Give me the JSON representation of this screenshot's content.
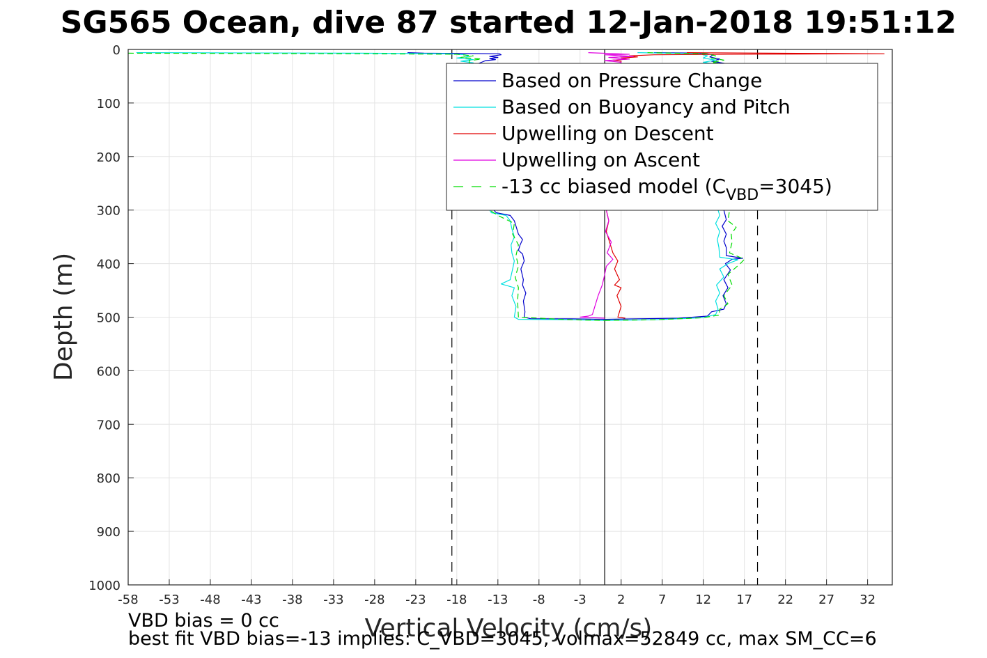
{
  "chart_data": {
    "type": "line",
    "title": "SG565 Ocean, dive 87 started 12-Jan-2018 19:51:12",
    "xlabel": "Vertical Velocity (cm/s)",
    "ylabel": "Depth (m)",
    "xlim": [
      -58,
      35
    ],
    "ylim": [
      0,
      1000
    ],
    "y_reversed": true,
    "grid": true,
    "xticks": [
      -58,
      -53,
      -48,
      -43,
      -38,
      -33,
      -28,
      -23,
      -18,
      -13,
      -8,
      -3,
      2,
      7,
      12,
      17,
      22,
      27,
      32
    ],
    "yticks": [
      0,
      100,
      200,
      300,
      400,
      500,
      600,
      700,
      800,
      900,
      1000
    ],
    "legend_position": "top-right",
    "reference_lines": [
      {
        "x": 0,
        "style": "solid",
        "color": "#000000"
      },
      {
        "x": -18.6,
        "style": "dashed",
        "color": "#000000"
      },
      {
        "x": 18.6,
        "style": "dashed",
        "color": "#000000"
      }
    ],
    "series": [
      {
        "name": "Based on Pressure Change",
        "color": "#0000cc",
        "style": "solid",
        "segments": [
          [
            [
              -24,
              6
            ],
            [
              -22,
              7
            ],
            [
              -12.8,
              8
            ],
            [
              -12.6,
              10
            ],
            [
              -14,
              13
            ],
            [
              -13,
              15
            ],
            [
              -14,
              17
            ],
            [
              -13.3,
              19
            ],
            [
              -14.5,
              21
            ],
            [
              -15,
              24
            ],
            [
              -15.5,
              27
            ],
            [
              -13.5,
              300
            ],
            [
              -13.2,
              305
            ],
            [
              -11.5,
              310
            ],
            [
              -11,
              320
            ],
            [
              -10.8,
              330
            ],
            [
              -10.5,
              345
            ],
            [
              -10,
              355
            ],
            [
              -10.3,
              365
            ],
            [
              -10.5,
              375
            ],
            [
              -10,
              382
            ],
            [
              -9.8,
              395
            ],
            [
              -10.2,
              410
            ],
            [
              -9.9,
              430
            ],
            [
              -10,
              440
            ],
            [
              -9.6,
              455
            ],
            [
              -9.9,
              470
            ],
            [
              -9.7,
              490
            ],
            [
              -9.8,
              500
            ],
            [
              -9,
              503
            ],
            [
              -4,
              503
            ],
            [
              0,
              504
            ]
          ],
          [
            [
              0,
              504
            ],
            [
              4,
              503
            ],
            [
              9,
              502
            ],
            [
              12.5,
              498
            ],
            [
              13,
              490
            ],
            [
              14.5,
              485
            ],
            [
              14.8,
              475
            ],
            [
              14.4,
              460
            ],
            [
              15,
              445
            ],
            [
              14.5,
              430
            ],
            [
              15.3,
              412
            ],
            [
              14.7,
              400
            ],
            [
              15.5,
              392
            ],
            [
              16.8,
              390
            ],
            [
              14.8,
              385
            ],
            [
              14.8,
              370
            ],
            [
              14.5,
              358
            ],
            [
              14.8,
              345
            ],
            [
              14.3,
              330
            ],
            [
              14.8,
              318
            ],
            [
              14.5,
              300
            ],
            [
              15,
              27
            ],
            [
              13,
              22
            ],
            [
              14,
              18
            ],
            [
              12.8,
              14
            ],
            [
              13.2,
              10
            ],
            [
              12,
              7
            ],
            [
              6,
              6
            ]
          ]
        ]
      },
      {
        "name": "Based on Buoyancy and Pitch",
        "color": "#00e0e0",
        "style": "solid",
        "segments": [
          [
            [
              -57,
              6
            ],
            [
              -30,
              7
            ],
            [
              -19,
              8
            ],
            [
              -17,
              10
            ],
            [
              -16.5,
              13
            ],
            [
              -18,
              16
            ],
            [
              -16,
              19
            ],
            [
              -17.5,
              22
            ],
            [
              -16,
              25
            ],
            [
              -14,
              300
            ],
            [
              -13.8,
              305
            ],
            [
              -12,
              310
            ],
            [
              -11.5,
              320
            ],
            [
              -11.3,
              335
            ],
            [
              -11,
              350
            ],
            [
              -11.4,
              365
            ],
            [
              -11.3,
              380
            ],
            [
              -11,
              395
            ],
            [
              -11.2,
              410
            ],
            [
              -11.5,
              430
            ],
            [
              -12.6,
              438
            ],
            [
              -11,
              445
            ],
            [
              -11.3,
              460
            ],
            [
              -10.8,
              480
            ],
            [
              -11,
              500
            ],
            [
              -10.5,
              504
            ],
            [
              -4,
              505
            ],
            [
              0,
              506
            ]
          ],
          [
            [
              0,
              506
            ],
            [
              6,
              505
            ],
            [
              12,
              501
            ],
            [
              13.5,
              495
            ],
            [
              13.8,
              485
            ],
            [
              13.5,
              470
            ],
            [
              14,
              455
            ],
            [
              13.6,
              440
            ],
            [
              14.5,
              425
            ],
            [
              14,
              410
            ],
            [
              15,
              400
            ],
            [
              16.2,
              393
            ],
            [
              14,
              388
            ],
            [
              13.9,
              370
            ],
            [
              13.7,
              355
            ],
            [
              14,
              340
            ],
            [
              13.5,
              325
            ],
            [
              14,
              310
            ],
            [
              13.8,
              300
            ],
            [
              14,
              28
            ],
            [
              12,
              24
            ],
            [
              13.5,
              20
            ],
            [
              12,
              16
            ],
            [
              12.5,
              12
            ],
            [
              11.5,
              8
            ],
            [
              4,
              6
            ]
          ]
        ]
      },
      {
        "name": "Upwelling on Descent",
        "color": "#e00000",
        "style": "solid",
        "segments": [
          [
            [
              10,
              6
            ],
            [
              20,
              7
            ],
            [
              34,
              8
            ],
            [
              15,
              9
            ],
            [
              6,
              10
            ],
            [
              3,
              12
            ],
            [
              4,
              14
            ],
            [
              2,
              16
            ],
            [
              3,
              18
            ],
            [
              1,
              20
            ],
            [
              2,
              22
            ],
            [
              0.2,
              300
            ],
            [
              0.5,
              320
            ],
            [
              0.2,
              340
            ],
            [
              0.6,
              360
            ],
            [
              1,
              380
            ],
            [
              1.6,
              395
            ],
            [
              1.2,
              410
            ],
            [
              1.8,
              430
            ],
            [
              1.2,
              440
            ],
            [
              2,
              445
            ],
            [
              1.5,
              460
            ],
            [
              2,
              480
            ],
            [
              1.6,
              500
            ],
            [
              2.5,
              502
            ]
          ]
        ]
      },
      {
        "name": "Upwelling on Ascent",
        "color": "#e000e0",
        "style": "solid",
        "segments": [
          [
            [
              -2,
              6
            ],
            [
              3,
              9
            ],
            [
              0,
              10
            ],
            [
              3.5,
              13
            ],
            [
              0.5,
              15
            ],
            [
              3,
              18
            ],
            [
              0,
              21
            ],
            [
              2,
              24
            ],
            [
              0.2,
              300
            ],
            [
              0.5,
              320
            ],
            [
              0.1,
              340
            ],
            [
              0.8,
              360
            ],
            [
              0.3,
              380
            ],
            [
              1,
              392
            ],
            [
              0.2,
              405
            ],
            [
              0,
              420
            ],
            [
              -0.3,
              440
            ],
            [
              -0.8,
              460
            ],
            [
              -1.2,
              480
            ],
            [
              -1.5,
              495
            ],
            [
              -2,
              498
            ],
            [
              -3,
              500
            ],
            [
              0,
              502
            ]
          ]
        ]
      },
      {
        "name": "-13 cc biased model (C_VBD=3045)",
        "legend_label_main": "-13 cc biased model (C",
        "legend_label_sub": "VBD",
        "legend_label_end": "=3045)",
        "color": "#00dd00",
        "style": "dashed",
        "segments": [
          [
            [
              -58,
              7
            ],
            [
              -30,
              8
            ],
            [
              -18,
              9
            ],
            [
              -16,
              12
            ],
            [
              -17.5,
              15
            ],
            [
              -15,
              18
            ],
            [
              -16.5,
              21
            ],
            [
              -14,
              300
            ],
            [
              -13,
              310
            ],
            [
              -11,
              325
            ],
            [
              -11.2,
              345
            ],
            [
              -10.5,
              365
            ],
            [
              -10.8,
              385
            ],
            [
              -10.5,
              405
            ],
            [
              -10.9,
              425
            ],
            [
              -10.5,
              445
            ],
            [
              -10.6,
              470
            ],
            [
              -10.5,
              500
            ],
            [
              -4,
              505
            ],
            [
              0,
              506
            ]
          ],
          [
            [
              0,
              506
            ],
            [
              6,
              505
            ],
            [
              12,
              501
            ],
            [
              14,
              496
            ],
            [
              14,
              485
            ],
            [
              15,
              475
            ],
            [
              14.5,
              460
            ],
            [
              15.5,
              440
            ],
            [
              15,
              420
            ],
            [
              16.5,
              400
            ],
            [
              17,
              392
            ],
            [
              15.2,
              380
            ],
            [
              15.5,
              360
            ],
            [
              15.4,
              345
            ],
            [
              16,
              332
            ],
            [
              15,
              320
            ],
            [
              15.2,
              300
            ],
            [
              15,
              28
            ],
            [
              13,
              24
            ],
            [
              14.5,
              20
            ],
            [
              13,
              16
            ],
            [
              13.5,
              12
            ],
            [
              12.5,
              8
            ],
            [
              5,
              6
            ]
          ]
        ]
      }
    ],
    "annotations": [
      "VBD bias = 0 cc",
      "best fit VBD bias=-13 implies: C_VBD=3045, volmax=52849 cc, max SM_CC=6"
    ]
  }
}
